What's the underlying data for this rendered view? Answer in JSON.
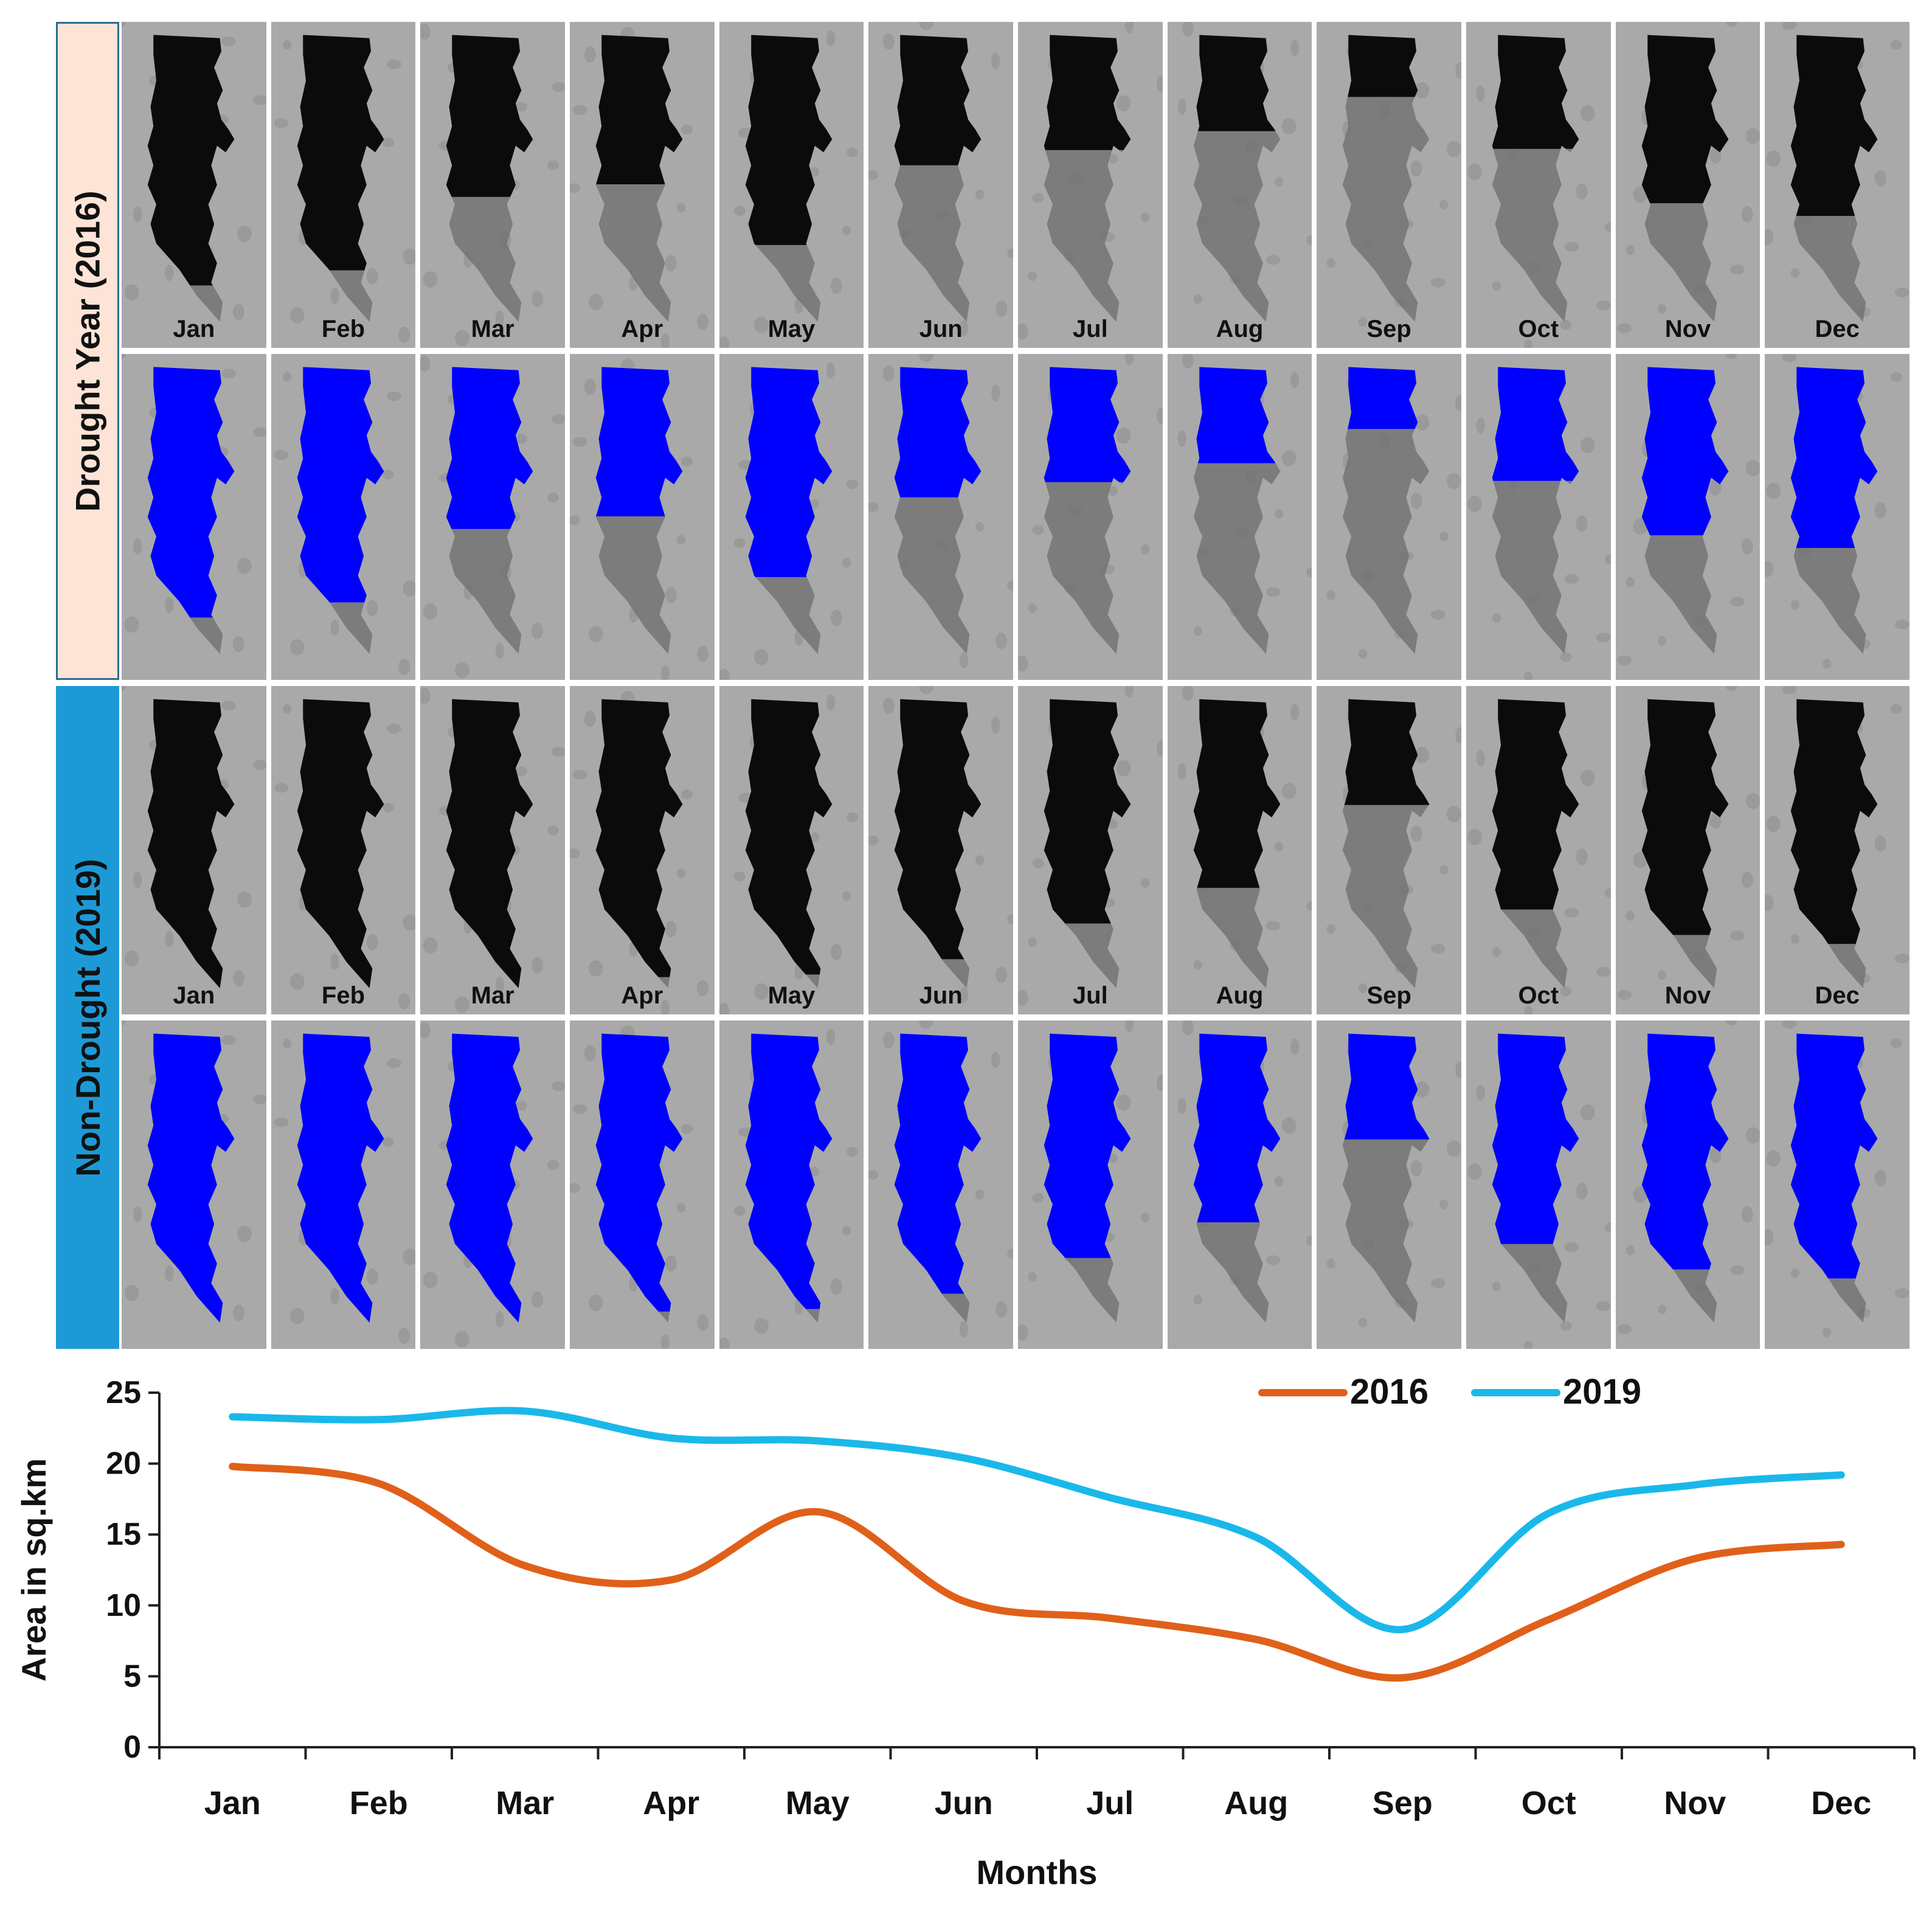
{
  "rows": [
    {
      "label": "Drought Year (2016)",
      "year": "2016",
      "color": "#fde4d7"
    },
    {
      "label": "Non-Drought (2019)",
      "year": "2019",
      "color": "#1d9ad6"
    }
  ],
  "months": [
    "Jan",
    "Feb",
    "Mar",
    "Apr",
    "May",
    "Jun",
    "Jul",
    "Aug",
    "Sep",
    "Oct",
    "Nov",
    "Dec"
  ],
  "colors": {
    "water_dark": "#0b0b0b",
    "water_classified": "#0000ff",
    "land": "#a9a9a9"
  },
  "chart_data": {
    "type": "line",
    "categories": [
      "Jan",
      "Feb",
      "Mar",
      "Apr",
      "May",
      "Jun",
      "Jul",
      "Aug",
      "Sep",
      "Oct",
      "Nov",
      "Dec"
    ],
    "series": [
      {
        "name": "2016",
        "color": "#e0601a",
        "values": [
          19.8,
          18.6,
          12.8,
          11.8,
          16.6,
          10.3,
          9.1,
          7.6,
          4.9,
          9.0,
          13.3,
          14.3
        ]
      },
      {
        "name": "2019",
        "color": "#1ab8ea",
        "values": [
          23.3,
          23.1,
          23.7,
          21.8,
          21.6,
          20.4,
          17.6,
          14.8,
          8.3,
          16.5,
          18.5,
          19.2
        ]
      }
    ],
    "xlabel": "Months",
    "ylabel": "Area in sq.km",
    "yticks": [
      0,
      5,
      10,
      15,
      20,
      25
    ],
    "ylim": [
      0,
      25
    ],
    "legend": "top-right"
  }
}
